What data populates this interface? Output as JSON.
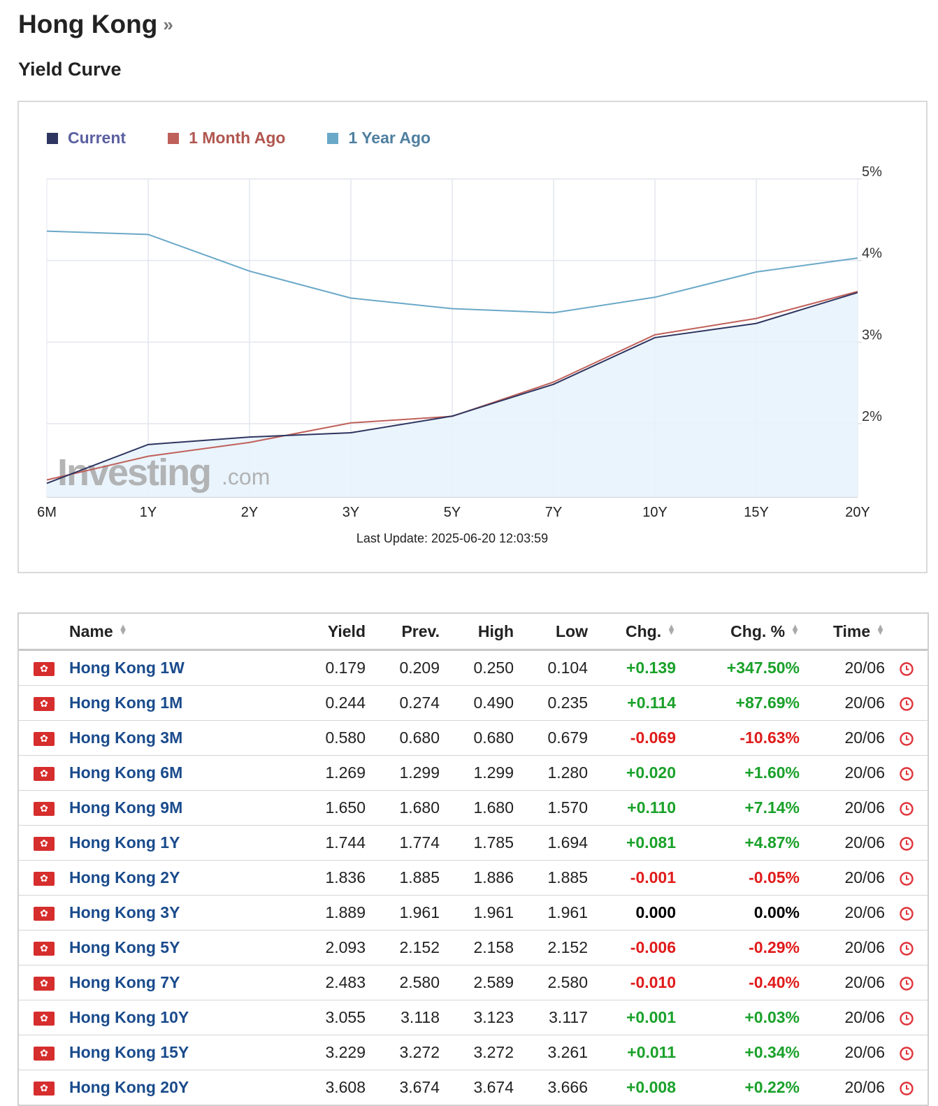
{
  "page": {
    "title": "Hong Kong",
    "title_suffix": "»",
    "subtitle": "Yield Curve"
  },
  "legend": [
    {
      "label": "Current",
      "color": "#2e3560"
    },
    {
      "label": "1 Month Ago",
      "color": "#c0605a"
    },
    {
      "label": "1 Year Ago",
      "color": "#6aa8c8"
    }
  ],
  "chart_data": {
    "type": "line",
    "categories": [
      "6M",
      "1Y",
      "2Y",
      "3Y",
      "5Y",
      "7Y",
      "10Y",
      "15Y",
      "20Y"
    ],
    "ytick_labels": [
      "5%",
      "4%",
      "3%",
      "2%"
    ],
    "ylim": [
      1.1,
      5
    ],
    "y_axis_side": "right",
    "grid": true,
    "legend_position": "top-left",
    "series": [
      {
        "name": "Current",
        "color": "#2e3560",
        "filled": true,
        "values": [
          1.269,
          1.744,
          1.836,
          1.889,
          2.093,
          2.483,
          3.055,
          3.229,
          3.608
        ]
      },
      {
        "name": "1 Month Ago",
        "color": "#c0605a",
        "filled": false,
        "values": [
          1.31,
          1.6,
          1.77,
          2.01,
          2.09,
          2.51,
          3.09,
          3.29,
          3.62
        ]
      },
      {
        "name": "1 Year Ago",
        "color": "#6aa8c8",
        "filled": false,
        "values": [
          4.36,
          4.32,
          3.87,
          3.54,
          3.41,
          3.36,
          3.55,
          3.86,
          4.03
        ]
      }
    ],
    "watermark": "Investing.com",
    "footer": "Last Update: 2025-06-20 12:03:59"
  },
  "table": {
    "headers": {
      "name": "Name",
      "yield": "Yield",
      "prev": "Prev.",
      "high": "High",
      "low": "Low",
      "chg": "Chg.",
      "chg_pct": "Chg. %",
      "time": "Time"
    },
    "sort_icon": "⇅",
    "rows": [
      {
        "name": "Hong Kong 1W",
        "yield": "0.179",
        "prev": "0.209",
        "high": "0.250",
        "low": "0.104",
        "chg": "+0.139",
        "chg_pct": "+347.50%",
        "time": "20/06",
        "dir": "pos"
      },
      {
        "name": "Hong Kong 1M",
        "yield": "0.244",
        "prev": "0.274",
        "high": "0.490",
        "low": "0.235",
        "chg": "+0.114",
        "chg_pct": "+87.69%",
        "time": "20/06",
        "dir": "pos"
      },
      {
        "name": "Hong Kong 3M",
        "yield": "0.580",
        "prev": "0.680",
        "high": "0.680",
        "low": "0.679",
        "chg": "-0.069",
        "chg_pct": "-10.63%",
        "time": "20/06",
        "dir": "neg"
      },
      {
        "name": "Hong Kong 6M",
        "yield": "1.269",
        "prev": "1.299",
        "high": "1.299",
        "low": "1.280",
        "chg": "+0.020",
        "chg_pct": "+1.60%",
        "time": "20/06",
        "dir": "pos"
      },
      {
        "name": "Hong Kong 9M",
        "yield": "1.650",
        "prev": "1.680",
        "high": "1.680",
        "low": "1.570",
        "chg": "+0.110",
        "chg_pct": "+7.14%",
        "time": "20/06",
        "dir": "pos"
      },
      {
        "name": "Hong Kong 1Y",
        "yield": "1.744",
        "prev": "1.774",
        "high": "1.785",
        "low": "1.694",
        "chg": "+0.081",
        "chg_pct": "+4.87%",
        "time": "20/06",
        "dir": "pos"
      },
      {
        "name": "Hong Kong 2Y",
        "yield": "1.836",
        "prev": "1.885",
        "high": "1.886",
        "low": "1.885",
        "chg": "-0.001",
        "chg_pct": "-0.05%",
        "time": "20/06",
        "dir": "neg"
      },
      {
        "name": "Hong Kong 3Y",
        "yield": "1.889",
        "prev": "1.961",
        "high": "1.961",
        "low": "1.961",
        "chg": "0.000",
        "chg_pct": "0.00%",
        "time": "20/06",
        "dir": "zero"
      },
      {
        "name": "Hong Kong 5Y",
        "yield": "2.093",
        "prev": "2.152",
        "high": "2.158",
        "low": "2.152",
        "chg": "-0.006",
        "chg_pct": "-0.29%",
        "time": "20/06",
        "dir": "neg"
      },
      {
        "name": "Hong Kong 7Y",
        "yield": "2.483",
        "prev": "2.580",
        "high": "2.589",
        "low": "2.580",
        "chg": "-0.010",
        "chg_pct": "-0.40%",
        "time": "20/06",
        "dir": "neg"
      },
      {
        "name": "Hong Kong 10Y",
        "yield": "3.055",
        "prev": "3.118",
        "high": "3.123",
        "low": "3.117",
        "chg": "+0.001",
        "chg_pct": "+0.03%",
        "time": "20/06",
        "dir": "pos"
      },
      {
        "name": "Hong Kong 15Y",
        "yield": "3.229",
        "prev": "3.272",
        "high": "3.272",
        "low": "3.261",
        "chg": "+0.011",
        "chg_pct": "+0.34%",
        "time": "20/06",
        "dir": "pos"
      },
      {
        "name": "Hong Kong 20Y",
        "yield": "3.608",
        "prev": "3.674",
        "high": "3.674",
        "low": "3.666",
        "chg": "+0.008",
        "chg_pct": "+0.22%",
        "time": "20/06",
        "dir": "pos"
      }
    ]
  },
  "icons": {
    "flag": "hong-kong-flag-icon",
    "clock": "clock-icon",
    "sort": "sort-arrows-icon"
  },
  "colors": {
    "positive": "#1aa12a",
    "negative": "#e01b1b",
    "link": "#1a4b8c"
  }
}
